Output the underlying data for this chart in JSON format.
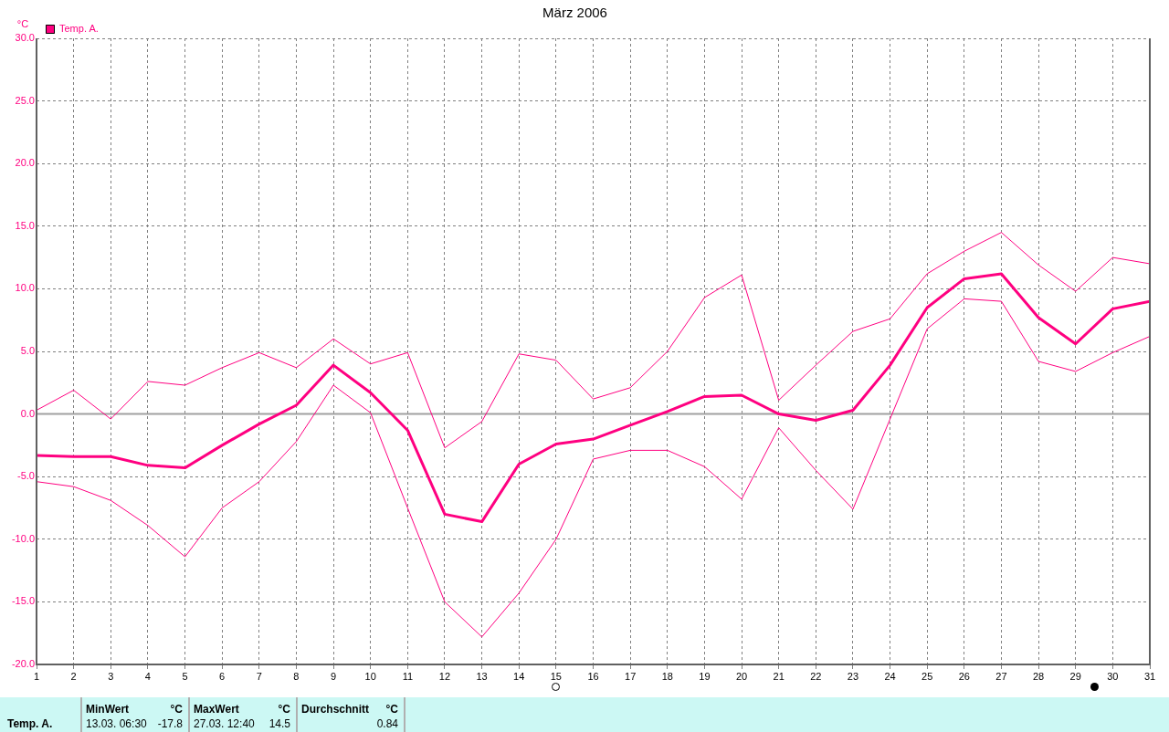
{
  "chart_data": {
    "type": "line",
    "title": "März 2006",
    "ylabel": "°C",
    "x": [
      1,
      2,
      3,
      4,
      5,
      6,
      7,
      8,
      9,
      10,
      11,
      12,
      13,
      14,
      15,
      16,
      17,
      18,
      19,
      20,
      21,
      22,
      23,
      24,
      25,
      26,
      27,
      28,
      29,
      30,
      31
    ],
    "xlim": [
      1,
      31
    ],
    "xticks": [
      1,
      2,
      3,
      4,
      5,
      6,
      7,
      8,
      9,
      10,
      11,
      12,
      13,
      14,
      15,
      16,
      17,
      18,
      19,
      20,
      21,
      22,
      23,
      24,
      25,
      26,
      27,
      28,
      29,
      30,
      31
    ],
    "ylim": [
      -20,
      30
    ],
    "yticks": [
      {
        "value": -20,
        "label": "-20.0"
      },
      {
        "value": -15,
        "label": "-15.0"
      },
      {
        "value": -10,
        "label": "-10.0"
      },
      {
        "value": -5,
        "label": "-5.0"
      },
      {
        "value": 0,
        "label": "0.0"
      },
      {
        "value": 5,
        "label": "5.0"
      },
      {
        "value": 10,
        "label": "10.0"
      },
      {
        "value": 15,
        "label": "15.0"
      },
      {
        "value": 20,
        "label": "20.0"
      },
      {
        "value": 25,
        "label": "25.0"
      },
      {
        "value": 30,
        "label": "30.0"
      }
    ],
    "grid": true,
    "legend": "top left",
    "marker": "none",
    "line_style": "solid",
    "ref_lines": [
      {
        "axis": "y",
        "value": 0,
        "color": "#a0a0a0"
      }
    ],
    "series": [
      {
        "color": "#ff0080",
        "values": [
          0.3,
          1.9,
          -0.4,
          2.6,
          2.3,
          3.7,
          4.9,
          3.7,
          6.0,
          4.0,
          4.9,
          -2.7,
          -0.6,
          4.8,
          4.3,
          1.2,
          2.1,
          5.0,
          9.3,
          11.1,
          1.1,
          3.9,
          6.6,
          7.6,
          11.2,
          13.0,
          14.5,
          11.9,
          9.8,
          12.5,
          12.0
        ]
      },
      {
        "name": "Temp. A.",
        "color": "#ff0080",
        "values": [
          -3.3,
          -3.4,
          -3.4,
          -4.1,
          -4.3,
          -2.5,
          -0.8,
          0.7,
          3.9,
          1.7,
          -1.3,
          -8.0,
          -8.6,
          -4.0,
          -2.4,
          -2.0,
          -0.9,
          0.2,
          1.4,
          1.5,
          0.0,
          -0.5,
          0.3,
          3.9,
          8.5,
          10.8,
          11.2,
          7.7,
          5.6,
          8.4,
          9.0
        ]
      },
      {
        "color": "#ff0080",
        "values": [
          -5.4,
          -5.8,
          -6.9,
          -8.9,
          -11.4,
          -7.5,
          -5.4,
          -2.2,
          2.3,
          0.1,
          -7.5,
          -15.0,
          -17.8,
          -14.3,
          -10.0,
          -3.6,
          -2.9,
          -2.9,
          -4.2,
          -6.8,
          -1.1,
          -4.5,
          -7.6,
          -0.4,
          6.8,
          9.2,
          9.0,
          4.2,
          3.4,
          4.9,
          6.2
        ]
      }
    ],
    "annotations": [
      "Temp. A.",
      "MinWert",
      "°C",
      "13.03.  06:30",
      "-17.8",
      "MaxWert",
      "°C",
      "27.03.  12:40",
      "14.5",
      "Durchschnitt",
      "°C",
      "0.84"
    ]
  }
}
